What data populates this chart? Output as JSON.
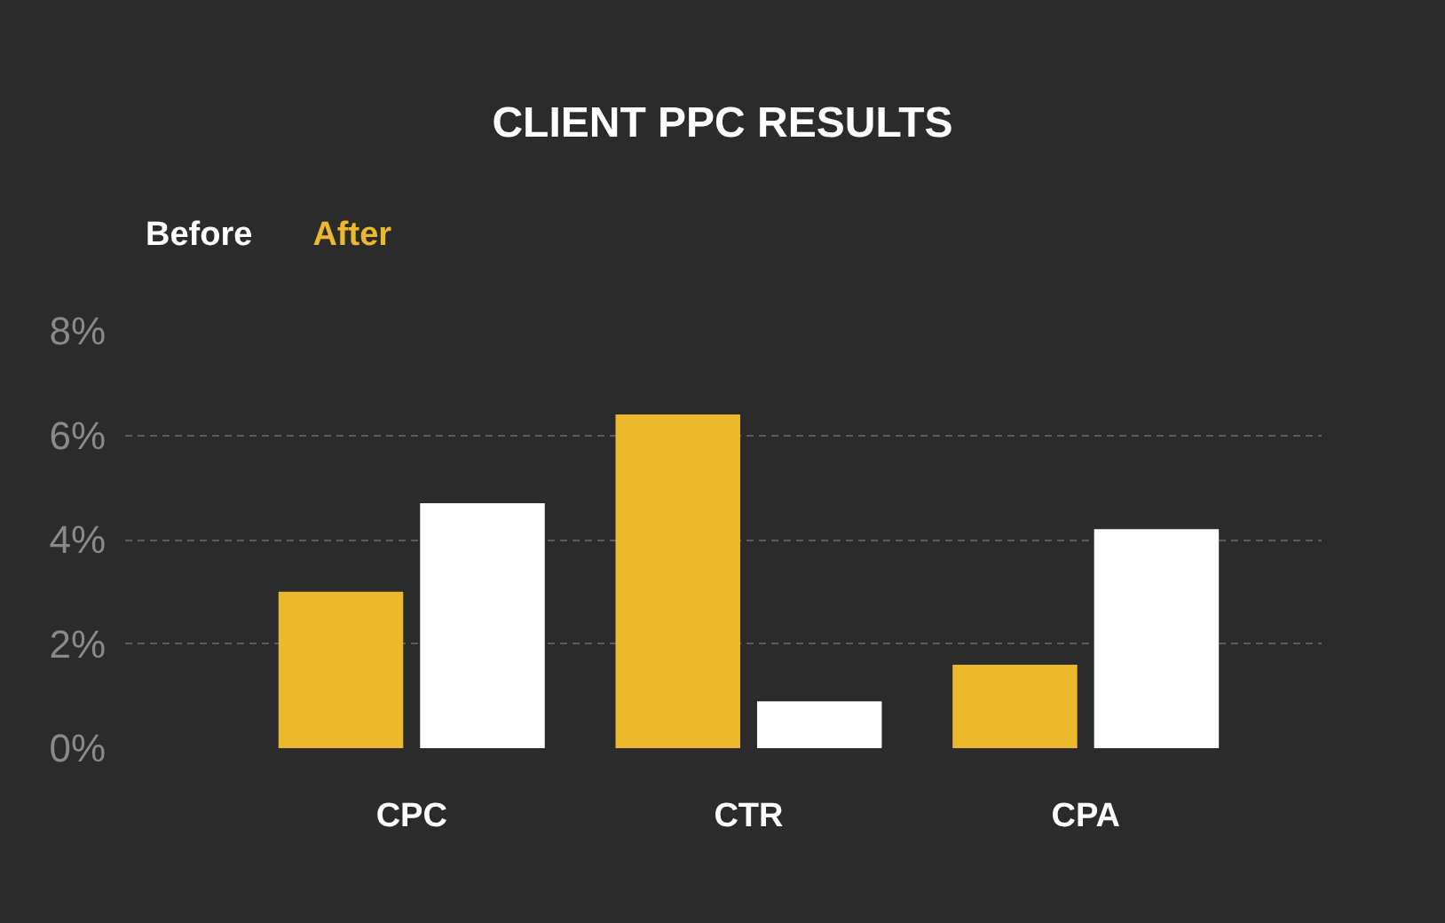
{
  "chart_data": {
    "type": "bar",
    "title": "CLIENT PPC RESULTS",
    "categories": [
      "CPC",
      "CTR",
      "CPA"
    ],
    "series": [
      {
        "name": "After",
        "color": "#ecb92c",
        "values": [
          3.0,
          6.4,
          1.6
        ]
      },
      {
        "name": "Before",
        "color": "#ffffff",
        "values": [
          4.7,
          0.9,
          4.2
        ]
      }
    ],
    "ylim": [
      0,
      8
    ],
    "yticks": [
      {
        "value": 0,
        "label": "0%"
      },
      {
        "value": 2,
        "label": "2%"
      },
      {
        "value": 4,
        "label": "4%"
      },
      {
        "value": 6,
        "label": "6%"
      },
      {
        "value": 8,
        "label": "8%"
      }
    ],
    "grid": "y"
  }
}
